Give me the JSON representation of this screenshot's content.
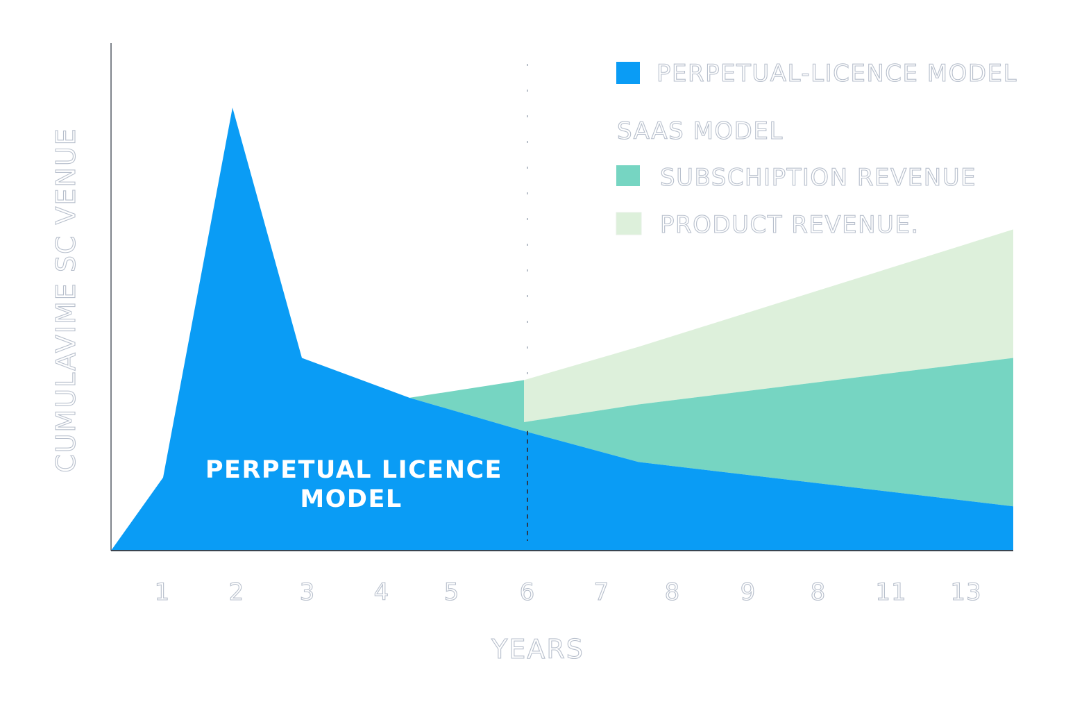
{
  "chart_data": {
    "type": "area",
    "xlabel": "YEARS",
    "ylabel": "CUMULAVIME SC VENUE",
    "tick_labels": [
      "1",
      "2",
      "3",
      "4",
      "5",
      "6",
      "7",
      "8",
      "9",
      "8",
      "11",
      "13"
    ],
    "x_range": [
      0,
      13
    ],
    "y_range": [
      0,
      100
    ],
    "grid": false,
    "legend_position": "top-right",
    "reference_line_x": 6,
    "series": [
      {
        "name": "PERPETUAL-LICENCE MODEL",
        "color": "#0a9cf5",
        "x": [
          0,
          0.75,
          1.75,
          2.75,
          4.3,
          5.95,
          7.6,
          13
        ],
        "y": [
          0,
          16.5,
          100,
          43.5,
          34.5,
          27,
          20,
          10
        ]
      },
      {
        "name": "SUBSCHIPTION REVENUE",
        "color": "#76d5c2",
        "x": [
          4.3,
          5.95,
          5.95,
          7.6,
          13
        ],
        "y": [
          34.5,
          38.5,
          29,
          33,
          43.5
        ]
      },
      {
        "name": "PRODUCT REVENUE.",
        "color": "#ddf0db",
        "x": [
          5.95,
          7.6,
          13
        ],
        "y": [
          38.5,
          46,
          72.5
        ]
      }
    ],
    "legend": {
      "perpetual": "PERPETUAL-LICENCE MODEL",
      "saas_header": "SAAS MODEL",
      "subscription": "SUBSCHIPTION REVENUE",
      "product": "PRODUCT REVENUE."
    },
    "annotation": [
      "PERPETUAL LICENCE",
      "MODEL"
    ]
  }
}
